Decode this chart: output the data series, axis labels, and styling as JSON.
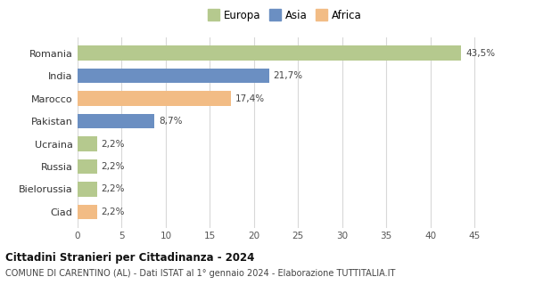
{
  "categories": [
    "Romania",
    "India",
    "Marocco",
    "Pakistan",
    "Ucraina",
    "Russia",
    "Bielorussia",
    "Ciad"
  ],
  "values": [
    43.5,
    21.7,
    17.4,
    8.7,
    2.2,
    2.2,
    2.2,
    2.2
  ],
  "labels": [
    "43,5%",
    "21,7%",
    "17,4%",
    "8,7%",
    "2,2%",
    "2,2%",
    "2,2%",
    "2,2%"
  ],
  "colors": [
    "#b5c98e",
    "#6b8fc2",
    "#f2bc85",
    "#6b8fc2",
    "#b5c98e",
    "#b5c98e",
    "#b5c98e",
    "#f2bc85"
  ],
  "continent": [
    "Europa",
    "Asia",
    "Africa"
  ],
  "legend_colors": [
    "#b5c98e",
    "#6b8fc2",
    "#f2bc85"
  ],
  "xlim": [
    0,
    47
  ],
  "xticks": [
    0,
    5,
    10,
    15,
    20,
    25,
    30,
    35,
    40,
    45
  ],
  "title": "Cittadini Stranieri per Cittadinanza - 2024",
  "subtitle": "COMUNE DI CARENTINO (AL) - Dati ISTAT al 1° gennaio 2024 - Elaborazione TUTTITALIA.IT",
  "bg_color": "#ffffff",
  "grid_color": "#d8d8d8",
  "bar_height": 0.65
}
